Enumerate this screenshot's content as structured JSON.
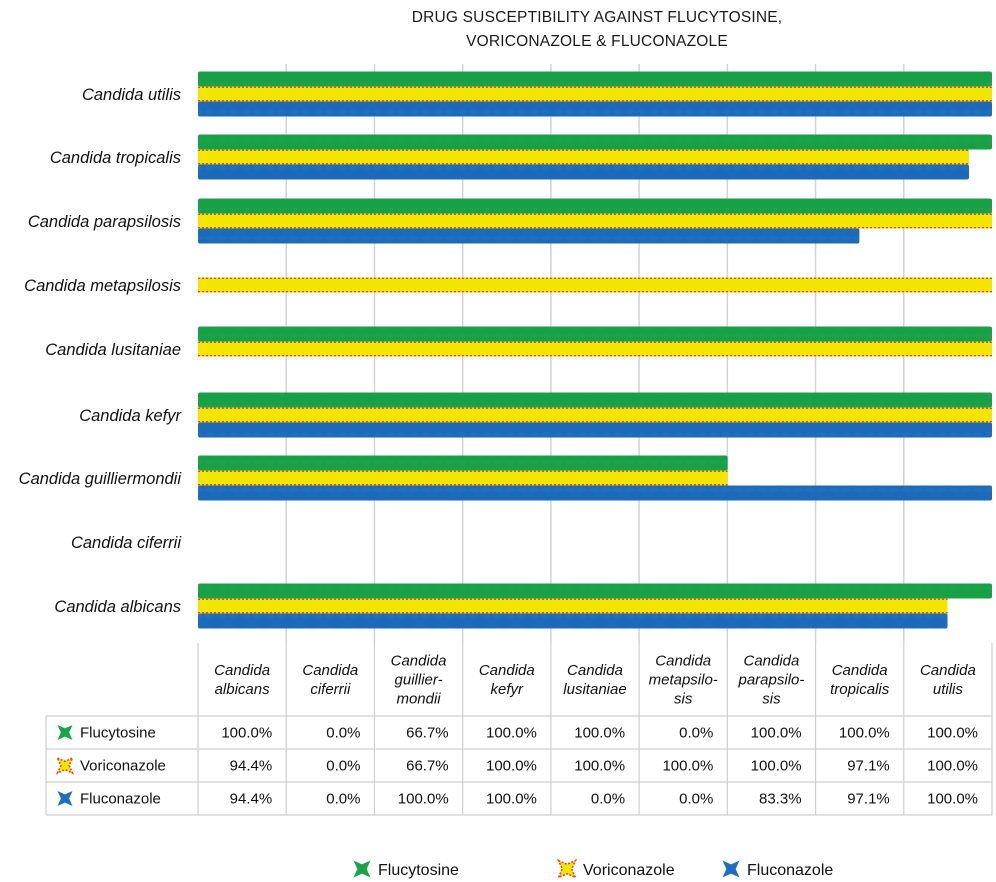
{
  "chart_data": {
    "type": "bar",
    "orientation": "horizontal",
    "title_lines": [
      "DRUG SUSCEPTIBILITY AGAINST FLUCYTOSINE,",
      "VORICONAZOLE & FLUCONAZOLE"
    ],
    "categories": [
      "Candida albicans",
      "Candida ciferrii",
      "Candida guilliermondii",
      "Candida kefyr",
      "Candida lusitaniae",
      "Candida metapsilosis",
      "Candida parapsilosis",
      "Candida tropicalis",
      "Candida utilis"
    ],
    "table_headers": [
      [
        "Candida",
        "albicans"
      ],
      [
        "Candida",
        "ciferrii"
      ],
      [
        "Candida",
        "guillier-",
        "mondii"
      ],
      [
        "Candida",
        "kefyr"
      ],
      [
        "Candida",
        "lusitaniae"
      ],
      [
        "Candida",
        "metapsilo-",
        "sis"
      ],
      [
        "Candida",
        "parapsilo-",
        "sis"
      ],
      [
        "Candida",
        "tropicalis"
      ],
      [
        "Candida",
        "utilis"
      ]
    ],
    "series": [
      {
        "name": "Flucytosine",
        "color": "#1aa34a",
        "values": [
          100.0,
          0.0,
          66.7,
          100.0,
          100.0,
          0.0,
          100.0,
          100.0,
          100.0
        ],
        "labels": [
          "100.0%",
          "0.0%",
          "66.7%",
          "100.0%",
          "100.0%",
          "0.0%",
          "100.0%",
          "100.0%",
          "100.0%"
        ]
      },
      {
        "name": "Voriconazole",
        "color": "#f2e600",
        "edge": "#e8462a",
        "values": [
          94.4,
          0.0,
          66.7,
          100.0,
          100.0,
          100.0,
          100.0,
          97.1,
          100.0
        ],
        "labels": [
          "94.4%",
          "0.0%",
          "66.7%",
          "100.0%",
          "100.0%",
          "100.0%",
          "100.0%",
          "97.1%",
          "100.0%"
        ]
      },
      {
        "name": "Fluconazole",
        "color": "#1f6fbf",
        "values": [
          94.4,
          0.0,
          100.0,
          100.0,
          0.0,
          0.0,
          83.3,
          97.1,
          100.0
        ],
        "labels": [
          "94.4%",
          "0.0%",
          "100.0%",
          "100.0%",
          "0.0%",
          "0.0%",
          "83.3%",
          "97.1%",
          "100.0%"
        ]
      }
    ],
    "grid": true,
    "legend_position": "bottom",
    "data_table": true
  }
}
